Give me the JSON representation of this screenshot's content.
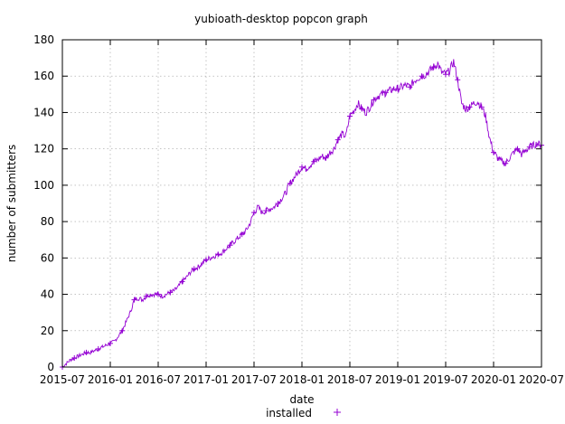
{
  "chart_data": {
    "type": "line",
    "title": "yubioath-desktop popcon graph",
    "xlabel": "date",
    "ylabel": "number of submitters",
    "ylim": [
      0,
      180
    ],
    "yticks": [
      0,
      20,
      40,
      60,
      80,
      100,
      120,
      140,
      160,
      180
    ],
    "xlim": [
      "2015-07",
      "2020-07"
    ],
    "xticks": [
      "2015-07",
      "2016-01",
      "2016-07",
      "2017-01",
      "2017-07",
      "2018-01",
      "2018-07",
      "2019-01",
      "2019-07",
      "2020-01",
      "2020-07"
    ],
    "grid": true,
    "legend": {
      "position": "bottom-center",
      "entries": [
        {
          "label": "installed",
          "color": "#9400d3",
          "marker": "+"
        }
      ]
    },
    "series": [
      {
        "name": "installed",
        "color": "#9400d3",
        "x": [
          0,
          0.5,
          1,
          1.5,
          2,
          2.5,
          3,
          3.5,
          4,
          4.5,
          5,
          5.5,
          6,
          6.5,
          7,
          7.5,
          8,
          8.5,
          9,
          9.5,
          10,
          10.5,
          11,
          11.5,
          12,
          12.5,
          13,
          13.5,
          14,
          14.5,
          15,
          15.5,
          16,
          16.5,
          17,
          17.5,
          18,
          18.5,
          19,
          19.5,
          20,
          20.5,
          21,
          21.5,
          22,
          22.5,
          23,
          23.5,
          24,
          24.5,
          25,
          25.5,
          26,
          26.5,
          27,
          27.5,
          28,
          28.5,
          29,
          29.5,
          30,
          30.5,
          31,
          31.5,
          32,
          32.5,
          33,
          33.5,
          34,
          34.5,
          35,
          35.5,
          36,
          36.5,
          37,
          37.5,
          38,
          38.5,
          39,
          39.5,
          40,
          40.5,
          41,
          41.5,
          42,
          42.5,
          43,
          43.5,
          44,
          44.5,
          45,
          45.5,
          46,
          46.5,
          47,
          47.5,
          48,
          48.5,
          49,
          49.5,
          50,
          50.5,
          51,
          51.5,
          52,
          52.5,
          53,
          53.5,
          54,
          54.5,
          55,
          55.5,
          56,
          56.5,
          57,
          57.5,
          58,
          58.5,
          59,
          59.5,
          60
        ],
        "values": [
          0,
          2,
          4,
          5,
          6,
          7,
          8,
          8,
          9,
          10,
          11,
          12,
          13,
          14,
          17,
          20,
          25,
          30,
          37,
          38,
          37,
          39,
          40,
          40,
          40,
          39,
          40,
          41,
          42,
          44,
          47,
          49,
          52,
          54,
          55,
          57,
          59,
          60,
          61,
          62,
          63,
          65,
          67,
          69,
          71,
          73,
          75,
          79,
          85,
          88,
          85,
          86,
          87,
          88,
          90,
          93,
          96,
          101,
          104,
          107,
          110,
          109,
          111,
          113,
          114,
          116,
          115,
          118,
          120,
          125,
          128,
          127,
          138,
          141,
          145,
          142,
          140,
          143,
          147,
          149,
          150,
          151,
          152,
          153,
          153,
          154,
          155,
          154,
          157,
          159,
          160,
          161,
          163,
          165,
          167,
          162,
          161,
          163,
          168,
          158,
          145,
          142,
          143,
          145,
          146,
          143,
          138,
          126,
          118,
          115,
          113,
          112,
          115,
          118,
          120,
          117,
          119,
          121,
          122,
          123,
          122
        ]
      }
    ]
  }
}
